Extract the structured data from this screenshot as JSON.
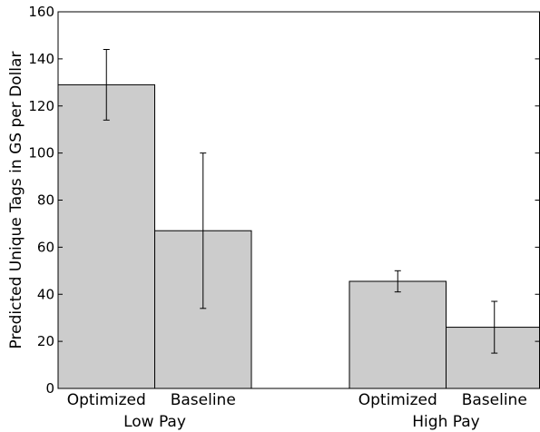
{
  "chart_data": {
    "type": "bar",
    "title": "",
    "xlabel": "",
    "ylabel": "Predicted Unique Tags in GS per Dollar",
    "ylim": [
      0,
      160
    ],
    "yticks": [
      0,
      20,
      40,
      60,
      80,
      100,
      120,
      140,
      160
    ],
    "grid": false,
    "bar_color": "#cccccc",
    "groups": [
      {
        "label": "Low Pay",
        "bars": [
          {
            "category": "Optimized",
            "value": 129,
            "err_low": 114,
            "err_high": 144
          },
          {
            "category": "Baseline",
            "value": 67,
            "err_low": 34,
            "err_high": 100
          }
        ]
      },
      {
        "label": "High Pay",
        "bars": [
          {
            "category": "Optimized",
            "value": 45.5,
            "err_low": 41,
            "err_high": 50
          },
          {
            "category": "Baseline",
            "value": 26,
            "err_low": 15,
            "err_high": 37
          }
        ]
      }
    ]
  }
}
